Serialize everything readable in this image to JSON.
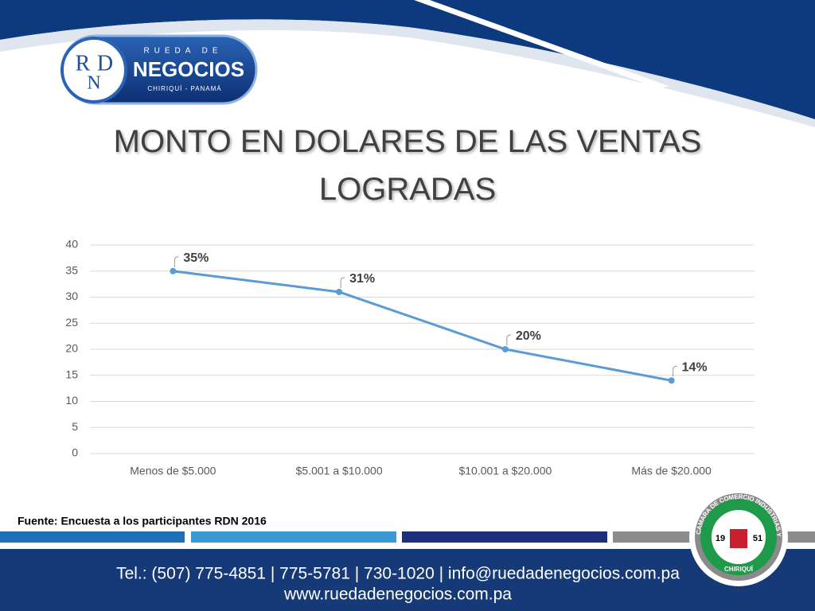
{
  "logo": {
    "initials": [
      "R",
      "D",
      "N"
    ],
    "top": "RUEDA DE",
    "name": "NEGOCIOS",
    "place": "CHIRIQUÍ - PANAMÁ"
  },
  "chart_data": {
    "type": "line",
    "title": "MONTO EN DOLARES DE LAS VENTAS LOGRADAS",
    "categories": [
      "Menos de $5.000",
      "$5.001 a $10.000",
      "$10.001 a $20.000",
      "Más de $20.000"
    ],
    "values": [
      35,
      31,
      20,
      14
    ],
    "value_labels": [
      "35%",
      "31%",
      "20%",
      "14%"
    ],
    "color": "#5b9bd5",
    "ylim": [
      0,
      40
    ],
    "yticks": [
      0,
      5,
      10,
      15,
      20,
      25,
      30,
      35,
      40
    ],
    "grid": true
  },
  "source": "Fuente: Encuesta a los participantes RDN 2016",
  "emblem": {
    "ring": "CAMARA DE COMERCIO INDUSTRIAS Y AGRICULTURA",
    "bottom": "CHIRIQUÍ",
    "year": [
      "19",
      "51"
    ]
  },
  "footer": {
    "contact": "Tel.: (507) 775-4851 | 775-5781 | 730-1020 | info@ruedadenegocios.com.pa",
    "web": "www.ruedadenegocios.com.pa"
  }
}
